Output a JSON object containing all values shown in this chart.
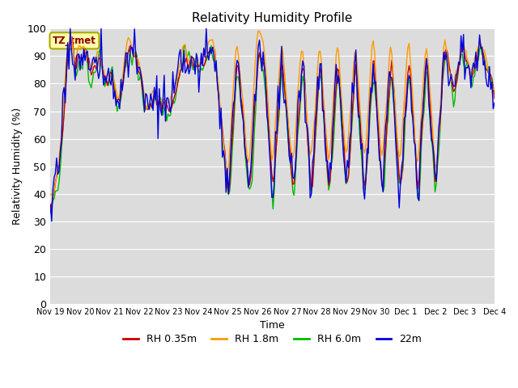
{
  "title": "Relativity Humidity Profile",
  "ylabel": "Relativity Humidity (%)",
  "xlabel": "Time",
  "annotation": "TZ_tmet",
  "ylim": [
    0,
    100
  ],
  "yticks": [
    0,
    10,
    20,
    30,
    40,
    50,
    60,
    70,
    80,
    90,
    100
  ],
  "colors": {
    "rh035": "#cc0000",
    "rh18": "#ff9900",
    "rh60": "#00bb00",
    "rh22": "#0000dd"
  },
  "legend_labels": [
    "RH 0.35m",
    "RH 1.8m",
    "RH 6.0m",
    "22m"
  ],
  "plot_bg": "#dcdcdc",
  "n_days": 16,
  "x_tick_labels": [
    "Nov 19",
    "Nov 20",
    "Nov 21",
    "Nov 22",
    "Nov 23",
    "Nov 24",
    "Nov 25",
    "Nov 26",
    "Nov 27",
    "Nov 28",
    "Nov 29",
    "Nov 30",
    "Dec 1",
    "Dec 2",
    "Dec 3",
    "Dec 4"
  ]
}
